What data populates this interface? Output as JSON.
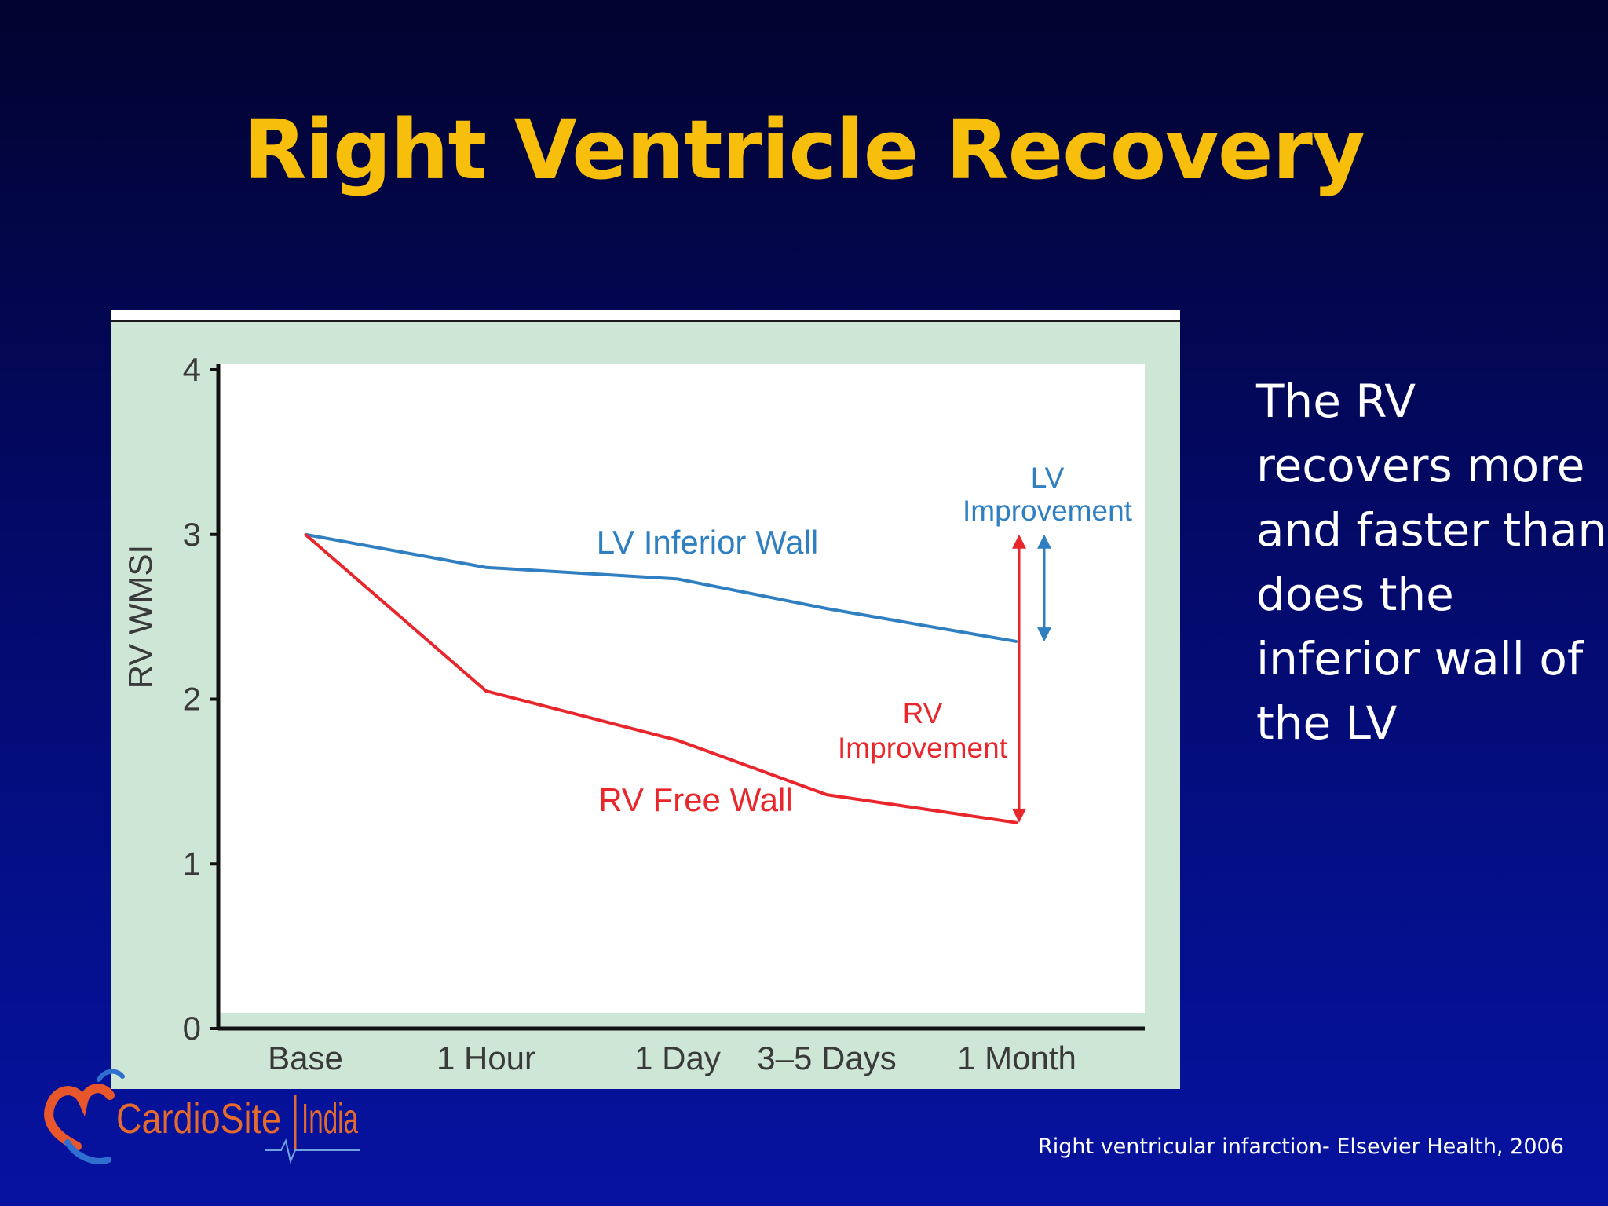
{
  "slide": {
    "title": "Right Ventricle Recovery",
    "side_text_lines": [
      "The RV",
      "recovers more",
      "and faster than",
      "does the",
      "inferior wall of",
      "the LV"
    ],
    "citation": "Right ventricular  infarction- Elsevier Health, 2006",
    "logo_text": "CardioSite India",
    "colors": {
      "background": "#03085c",
      "title": "#f7be0c",
      "panel": "#cde6d6",
      "text": "#ffffff"
    }
  },
  "chart_data": {
    "type": "line",
    "categories": [
      "Base",
      "1 Hour",
      "1 Day",
      "3–5 Days",
      "1 Month"
    ],
    "ylabel": "RV WMSI",
    "xlabel": "",
    "ylim": [
      0,
      4
    ],
    "yticks": [
      0,
      1,
      2,
      3,
      4
    ],
    "grid": false,
    "series": [
      {
        "name": "LV Inferior Wall",
        "color": "#2f7fc1",
        "values": [
          3.0,
          2.8,
          2.73,
          2.55,
          2.35
        ]
      },
      {
        "name": "RV Free Wall",
        "color": "#e8262b",
        "values": [
          3.0,
          2.05,
          1.75,
          1.42,
          1.25
        ]
      }
    ],
    "annotations": [
      {
        "text_lines": [
          "LV",
          "Improvement"
        ],
        "color": "#2f7fc1",
        "from": 2.35,
        "to": 3.0
      },
      {
        "text_lines": [
          "RV",
          "Improvement"
        ],
        "color": "#e8262b",
        "from": 1.25,
        "to": 3.0
      }
    ]
  }
}
